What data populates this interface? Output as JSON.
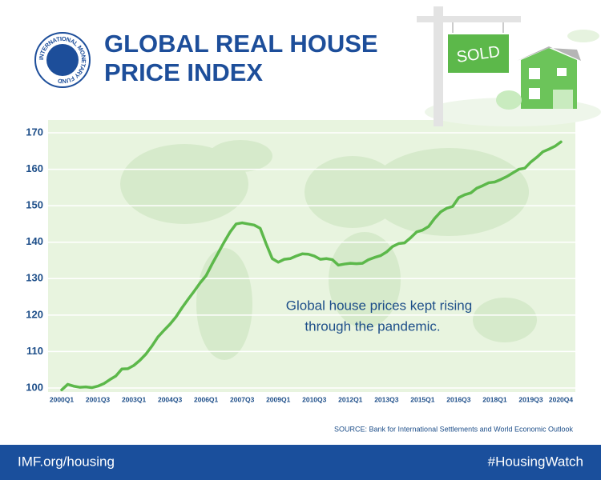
{
  "logo_text": "INTERNATIONAL MONETARY FUND",
  "sign": "SOLD",
  "chart_data": {
    "type": "line",
    "title": [
      "GLOBAL REAL HOUSE",
      "PRICE INDEX"
    ],
    "annotation": [
      "Global house prices kept rising",
      "through the pandemic."
    ],
    "source": "SOURCE: Bank for International Settlements and World Economic Outlook",
    "categories": [
      "2000Q1",
      null,
      null,
      null,
      null,
      null,
      "2001Q3",
      null,
      null,
      null,
      null,
      null,
      "2003Q1",
      null,
      null,
      null,
      null,
      null,
      "2004Q3",
      null,
      null,
      null,
      null,
      null,
      "2006Q1",
      null,
      null,
      null,
      null,
      null,
      "2007Q3",
      null,
      null,
      null,
      null,
      null,
      "2009Q1",
      null,
      null,
      null,
      null,
      null,
      "2010Q3",
      null,
      null,
      null,
      null,
      null,
      "2012Q1",
      null,
      null,
      null,
      null,
      null,
      "2013Q3",
      null,
      null,
      null,
      null,
      null,
      "2015Q1",
      null,
      null,
      null,
      null,
      null,
      "2016Q3",
      null,
      null,
      null,
      null,
      null,
      "2018Q1",
      null,
      null,
      null,
      null,
      null,
      "2019Q3",
      null,
      null,
      null,
      null,
      "2020Q4"
    ],
    "values": [
      99.5,
      101,
      100.5,
      100.2,
      100.3,
      100.1,
      100.5,
      101.2,
      102.3,
      103.3,
      105.2,
      105.3,
      106.2,
      107.6,
      109.3,
      111.5,
      114,
      115.8,
      117.5,
      119.5,
      122,
      124.3,
      126.5,
      128.8,
      130.8,
      134,
      137,
      140,
      142.8,
      145,
      145.3,
      145,
      144.7,
      143.8,
      139.5,
      135.5,
      134.5,
      135.3,
      135.5,
      136.2,
      136.8,
      136.7,
      136.2,
      135.3,
      135.5,
      135.2,
      133.7,
      134,
      134.2,
      134.1,
      134.2,
      135.2,
      135.8,
      136.3,
      137.3,
      138.8,
      139.6,
      139.8,
      141.2,
      142.8,
      143.3,
      144.3,
      146.5,
      148.3,
      149.3,
      149.8,
      152.2,
      153,
      153.5,
      154.8,
      155.5,
      156.3,
      156.5,
      157.2,
      158,
      159,
      160,
      160.3,
      162,
      163.3,
      164.8,
      165.5,
      166.3,
      167.5
    ],
    "color": "#5cb84a",
    "ylim": [
      100,
      170
    ],
    "yticks": [
      100,
      110,
      120,
      130,
      140,
      150,
      160,
      170
    ],
    "grid": true
  },
  "footer": {
    "left": "IMF.org/housing",
    "right": "#HousingWatch"
  }
}
